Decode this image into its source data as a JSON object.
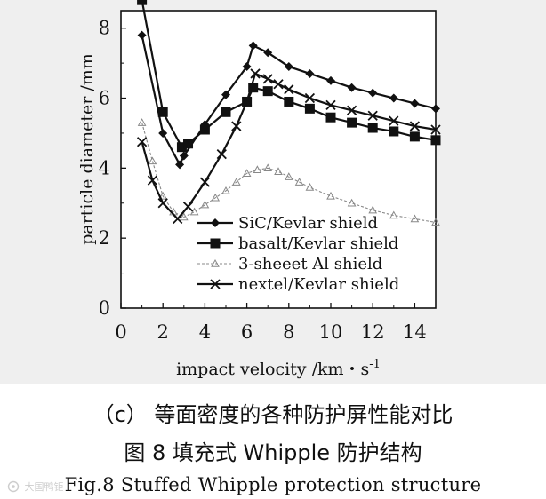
{
  "chart_data": {
    "type": "line",
    "title": "",
    "xlabel": "impact velocity /km・s",
    "xlabel_sup": "-1",
    "ylabel": "particle diameter /mm",
    "xlim": [
      0,
      15
    ],
    "ylim": [
      0,
      8.5
    ],
    "xticks": [
      0,
      2,
      4,
      6,
      8,
      10,
      12,
      14
    ],
    "yticks": [
      0,
      2,
      4,
      6,
      8
    ],
    "legend_position": "lower-center",
    "series": [
      {
        "name": "SiC/Kevlar shield",
        "marker": "diamond",
        "color": "#111111",
        "x": [
          1,
          2,
          2.8,
          3,
          4,
          5,
          6,
          6.3,
          7,
          8,
          9,
          10,
          11,
          12,
          13,
          14,
          15
        ],
        "y": [
          7.8,
          5.0,
          4.1,
          4.35,
          5.25,
          6.1,
          6.9,
          7.5,
          7.3,
          6.9,
          6.7,
          6.5,
          6.3,
          6.15,
          6.0,
          5.85,
          5.7
        ]
      },
      {
        "name": "basalt/Kevlar shield",
        "marker": "square",
        "color": "#111111",
        "x": [
          1,
          2,
          2.9,
          3.2,
          4,
          5,
          6,
          6.3,
          7,
          8,
          9,
          10,
          11,
          12,
          13,
          14,
          15
        ],
        "y": [
          8.8,
          5.6,
          4.6,
          4.7,
          5.1,
          5.6,
          5.9,
          6.3,
          6.2,
          5.9,
          5.7,
          5.45,
          5.3,
          5.15,
          5.05,
          4.9,
          4.8
        ]
      },
      {
        "name": "3-sheeet Al shield",
        "marker": "triangle",
        "color": "#888888",
        "x": [
          1,
          1.5,
          2,
          2.5,
          3,
          3.5,
          4,
          4.5,
          5,
          5.5,
          6,
          6.5,
          7,
          7.5,
          8,
          8.5,
          9,
          10,
          11,
          12,
          13,
          14,
          15
        ],
        "y": [
          5.3,
          4.2,
          3.2,
          2.75,
          2.6,
          2.75,
          2.95,
          3.15,
          3.35,
          3.6,
          3.85,
          3.95,
          4.0,
          3.9,
          3.75,
          3.6,
          3.45,
          3.2,
          3.0,
          2.8,
          2.65,
          2.55,
          2.45
        ]
      },
      {
        "name": "nextel/Kevlar shield",
        "marker": "x",
        "color": "#111111",
        "x": [
          1,
          1.5,
          2,
          2.7,
          3.2,
          4,
          4.8,
          5.5,
          6,
          6.4,
          7,
          7.5,
          8,
          9,
          10,
          11,
          12,
          13,
          14,
          15
        ],
        "y": [
          4.75,
          3.65,
          3.0,
          2.55,
          2.9,
          3.6,
          4.4,
          5.2,
          5.9,
          6.7,
          6.55,
          6.4,
          6.25,
          6.0,
          5.8,
          5.65,
          5.5,
          5.35,
          5.2,
          5.1
        ]
      }
    ]
  },
  "captions": {
    "panel": "（c）  等面密度的各种防护屏性能对比",
    "figure_cn": "图 8    填充式 Whipple 防护结构",
    "figure_en": "Fig.8    Stuffed Whipple protection structure"
  },
  "watermark": {
    "text": "大国鸭钜"
  }
}
